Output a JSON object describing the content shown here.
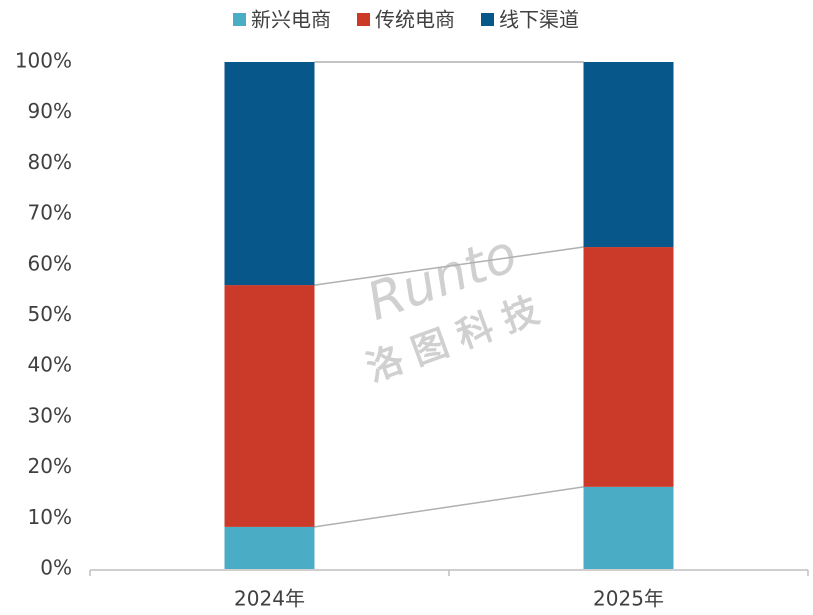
{
  "chart_data": {
    "type": "stacked_bar",
    "categories": [
      "2024年",
      "2025年"
    ],
    "series": [
      {
        "name": "新兴电商",
        "color": "#4bacc6",
        "values": [
          8.3,
          16.2
        ]
      },
      {
        "name": "传统电商",
        "color": "#cb3a29",
        "values": [
          47.7,
          47.3
        ]
      },
      {
        "name": "线下渠道",
        "color": "#08578a",
        "values": [
          44.0,
          36.5
        ]
      }
    ],
    "ylim": [
      0,
      100
    ],
    "yticks": [
      {
        "value": 0,
        "label": "0%"
      },
      {
        "value": 10,
        "label": "10%"
      },
      {
        "value": 20,
        "label": "20%"
      },
      {
        "value": 30,
        "label": "30%"
      },
      {
        "value": 40,
        "label": "40%"
      },
      {
        "value": 50,
        "label": "50%"
      },
      {
        "value": 60,
        "label": "60%"
      },
      {
        "value": 70,
        "label": "70%"
      },
      {
        "value": 80,
        "label": "80%"
      },
      {
        "value": 90,
        "label": "90%"
      },
      {
        "value": 100,
        "label": "100%"
      }
    ],
    "legend": "top",
    "watermark": [
      "Runto",
      "洛图科技"
    ]
  }
}
